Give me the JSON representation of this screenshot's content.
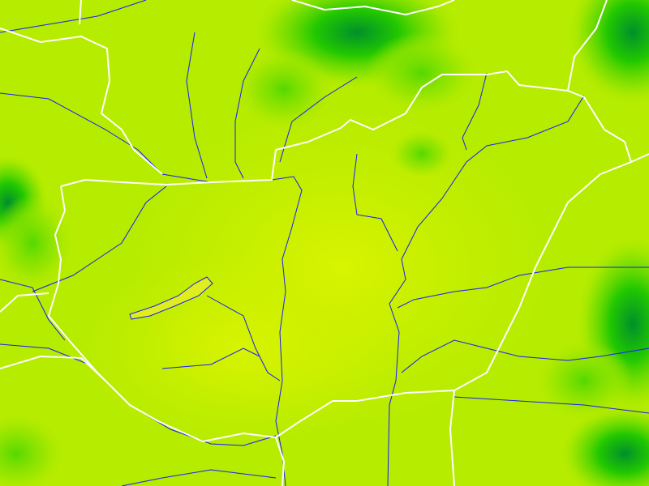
{
  "map": {
    "colors": {
      "base": "#c6ef00",
      "mid_green": "#88e400",
      "green": "#33d000",
      "dark_green": "#00a020",
      "lake": "#e0ee20",
      "borders": "#ffffff",
      "rivers": "#1a1aff"
    }
  }
}
